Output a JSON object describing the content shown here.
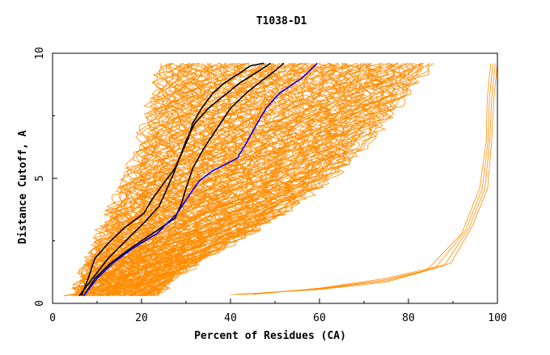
{
  "chart_data": {
    "type": "line",
    "title": "T1038-D1",
    "xlabel": "Percent of Residues (CA)",
    "ylabel": "Distance Cutoff, A",
    "xlim": [
      0,
      100
    ],
    "ylim": [
      0,
      10
    ],
    "x_ticks": [
      "0",
      "20",
      "40",
      "60",
      "80",
      "100"
    ],
    "y_ticks": [
      "0",
      "5",
      "10"
    ],
    "grid": false,
    "legend": "none",
    "colors": {
      "bundle": "#ff8c00",
      "black_series": "#000000",
      "blue_series": "#0000ff",
      "axes": "#000000"
    },
    "bundle_envelope": {
      "y": [
        0.3,
        1,
        2,
        3,
        4,
        5,
        6,
        7,
        8,
        9,
        9.6
      ],
      "x_left": [
        4.5,
        6.5,
        9,
        11.5,
        14,
        16.5,
        19,
        21,
        22.5,
        24,
        25
      ],
      "x_right": [
        23,
        27,
        36,
        46,
        55,
        62,
        68,
        73,
        78,
        82,
        85
      ]
    },
    "series": [
      {
        "color": "#000000",
        "x": [
          6.5,
          8,
          9.5,
          12.5,
          16,
          20.5,
          22.5,
          25,
          27.5,
          29,
          30.5,
          31.5,
          33.5,
          36,
          38.5,
          42,
          44.5,
          47.5
        ],
        "y": [
          0.3,
          1.0,
          1.8,
          2.4,
          3.0,
          3.6,
          4.2,
          4.8,
          5.4,
          6.0,
          6.6,
          7.2,
          7.8,
          8.4,
          8.8,
          9.2,
          9.5,
          9.6
        ]
      },
      {
        "color": "#000000",
        "x": [
          7,
          9.5,
          13,
          17.5,
          22.5,
          27.5,
          29,
          30,
          31.5,
          34,
          37,
          40,
          43.5,
          47,
          50,
          52
        ],
        "y": [
          0.3,
          1.0,
          1.6,
          2.2,
          2.8,
          3.4,
          4.0,
          4.6,
          5.4,
          6.2,
          7.0,
          7.8,
          8.4,
          8.9,
          9.3,
          9.6
        ]
      },
      {
        "color": "#000000",
        "x": [
          6,
          9,
          12.5,
          17,
          21,
          24,
          25.5,
          27,
          28.5,
          30,
          32,
          35,
          38.5,
          42,
          45.5,
          49
        ],
        "y": [
          0.3,
          1.0,
          1.8,
          2.6,
          3.3,
          3.9,
          4.5,
          5.1,
          5.8,
          6.5,
          7.2,
          7.8,
          8.3,
          8.8,
          9.2,
          9.6
        ]
      },
      {
        "color": "#0000ff",
        "x": [
          7,
          10,
          13.5,
          18,
          23.5,
          28,
          31,
          33,
          36,
          41.5,
          43.5,
          46,
          48,
          51,
          56,
          59.5
        ],
        "y": [
          0.3,
          1.0,
          1.6,
          2.2,
          2.8,
          3.6,
          4.4,
          4.9,
          5.3,
          5.8,
          6.4,
          7.2,
          7.8,
          8.4,
          9.0,
          9.6
        ]
      }
    ],
    "outlier_tail": {
      "color": "#ff8c00",
      "start_x": [
        40,
        41.5,
        42.5,
        45
      ],
      "mid_x": [
        84,
        86,
        88,
        89.5
      ],
      "top_x": [
        98.5,
        99,
        99.5,
        100
      ]
    }
  }
}
